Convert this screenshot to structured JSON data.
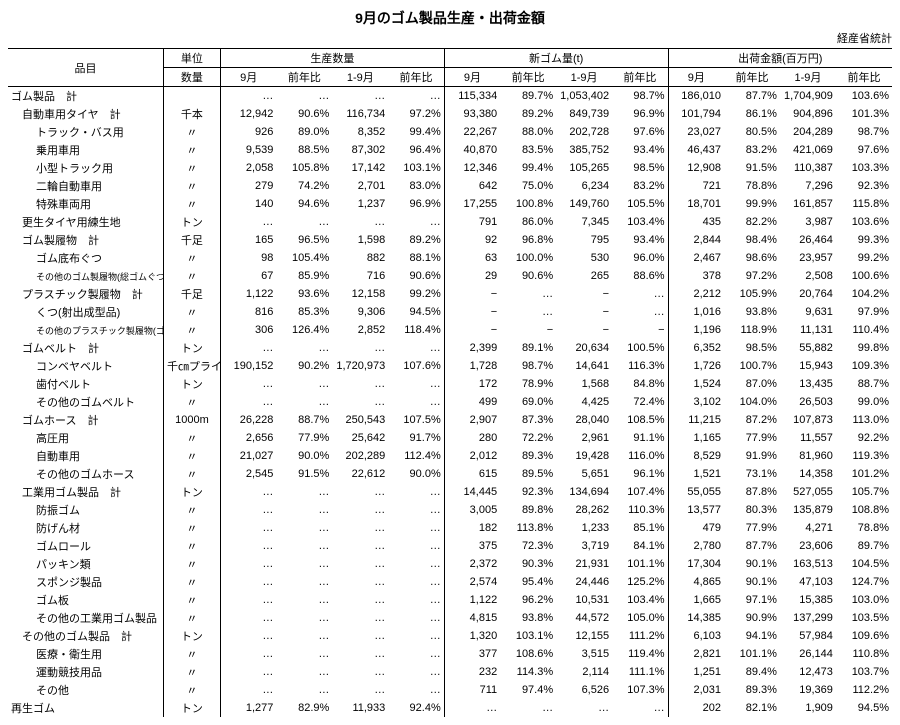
{
  "title": "9月のゴム製品生産・出荷金額",
  "subtitle": "経産省統計",
  "headers": {
    "item": "品目",
    "unit_top": "単位",
    "prod_qty": "生産数量",
    "new_rubber": "新ゴム量(t)",
    "ship_value": "出荷金額(百万円)",
    "qty": "数量",
    "sep": "9月",
    "yoy": "前年比",
    "jan_sep": "1-9月"
  },
  "rows": [
    {
      "label": "ゴム製品　計",
      "indent": 0,
      "unit": "",
      "q_sep": "…",
      "q_yoy": "…",
      "q_js": "…",
      "q_jsy": "…",
      "n_sep": "115,334",
      "n_yoy": "89.7%",
      "n_js": "1,053,402",
      "n_jsy": "98.7%",
      "s_sep": "186,010",
      "s_yoy": "87.7%",
      "s_js": "1,704,909",
      "s_jsy": "103.6%"
    },
    {
      "label": "自動車用タイヤ　計",
      "indent": 1,
      "unit": "千本",
      "q_sep": "12,942",
      "q_yoy": "90.6%",
      "q_js": "116,734",
      "q_jsy": "97.2%",
      "n_sep": "93,380",
      "n_yoy": "89.2%",
      "n_js": "849,739",
      "n_jsy": "96.9%",
      "s_sep": "101,794",
      "s_yoy": "86.1%",
      "s_js": "904,896",
      "s_jsy": "101.3%"
    },
    {
      "label": "トラック・バス用",
      "indent": 2,
      "unit": "〃",
      "q_sep": "926",
      "q_yoy": "89.0%",
      "q_js": "8,352",
      "q_jsy": "99.4%",
      "n_sep": "22,267",
      "n_yoy": "88.0%",
      "n_js": "202,728",
      "n_jsy": "97.6%",
      "s_sep": "23,027",
      "s_yoy": "80.5%",
      "s_js": "204,289",
      "s_jsy": "98.7%"
    },
    {
      "label": "乗用車用",
      "indent": 2,
      "unit": "〃",
      "q_sep": "9,539",
      "q_yoy": "88.5%",
      "q_js": "87,302",
      "q_jsy": "96.4%",
      "n_sep": "40,870",
      "n_yoy": "83.5%",
      "n_js": "385,752",
      "n_jsy": "93.4%",
      "s_sep": "46,437",
      "s_yoy": "83.2%",
      "s_js": "421,069",
      "s_jsy": "97.6%"
    },
    {
      "label": "小型トラック用",
      "indent": 2,
      "unit": "〃",
      "q_sep": "2,058",
      "q_yoy": "105.8%",
      "q_js": "17,142",
      "q_jsy": "103.1%",
      "n_sep": "12,346",
      "n_yoy": "99.4%",
      "n_js": "105,265",
      "n_jsy": "98.5%",
      "s_sep": "12,908",
      "s_yoy": "91.5%",
      "s_js": "110,387",
      "s_jsy": "103.3%"
    },
    {
      "label": "二輪自動車用",
      "indent": 2,
      "unit": "〃",
      "q_sep": "279",
      "q_yoy": "74.2%",
      "q_js": "2,701",
      "q_jsy": "83.0%",
      "n_sep": "642",
      "n_yoy": "75.0%",
      "n_js": "6,234",
      "n_jsy": "83.2%",
      "s_sep": "721",
      "s_yoy": "78.8%",
      "s_js": "7,296",
      "s_jsy": "92.3%"
    },
    {
      "label": "特殊車両用",
      "indent": 2,
      "unit": "〃",
      "q_sep": "140",
      "q_yoy": "94.6%",
      "q_js": "1,237",
      "q_jsy": "96.9%",
      "n_sep": "17,255",
      "n_yoy": "100.8%",
      "n_js": "149,760",
      "n_jsy": "105.5%",
      "s_sep": "18,701",
      "s_yoy": "99.9%",
      "s_js": "161,857",
      "s_jsy": "115.8%"
    },
    {
      "label": "更生タイヤ用練生地",
      "indent": 1,
      "unit": "トン",
      "q_sep": "…",
      "q_yoy": "…",
      "q_js": "…",
      "q_jsy": "…",
      "n_sep": "791",
      "n_yoy": "86.0%",
      "n_js": "7,345",
      "n_jsy": "103.4%",
      "s_sep": "435",
      "s_yoy": "82.2%",
      "s_js": "3,987",
      "s_jsy": "103.6%"
    },
    {
      "label": "ゴム製履物　計",
      "indent": 1,
      "unit": "千足",
      "q_sep": "165",
      "q_yoy": "96.5%",
      "q_js": "1,598",
      "q_jsy": "89.2%",
      "n_sep": "92",
      "n_yoy": "96.8%",
      "n_js": "795",
      "n_jsy": "93.4%",
      "s_sep": "2,844",
      "s_yoy": "98.4%",
      "s_js": "26,464",
      "s_jsy": "99.3%"
    },
    {
      "label": "ゴム底布ぐつ",
      "indent": 2,
      "unit": "〃",
      "q_sep": "98",
      "q_yoy": "105.4%",
      "q_js": "882",
      "q_jsy": "88.1%",
      "n_sep": "63",
      "n_yoy": "100.0%",
      "n_js": "530",
      "n_jsy": "96.0%",
      "s_sep": "2,467",
      "s_yoy": "98.6%",
      "s_js": "23,957",
      "s_jsy": "99.2%"
    },
    {
      "label": "その他のゴム製履物(総ゴムぐつを含む)",
      "indent": 3,
      "unit": "〃",
      "q_sep": "67",
      "q_yoy": "85.9%",
      "q_js": "716",
      "q_jsy": "90.6%",
      "n_sep": "29",
      "n_yoy": "90.6%",
      "n_js": "265",
      "n_jsy": "88.6%",
      "s_sep": "378",
      "s_yoy": "97.2%",
      "s_js": "2,508",
      "s_jsy": "100.6%"
    },
    {
      "label": "プラスチック製履物　計",
      "indent": 1,
      "unit": "千足",
      "q_sep": "1,122",
      "q_yoy": "93.6%",
      "q_js": "12,158",
      "q_jsy": "99.2%",
      "n_sep": "−",
      "n_yoy": "…",
      "n_js": "−",
      "n_jsy": "…",
      "s_sep": "2,212",
      "s_yoy": "105.9%",
      "s_js": "20,764",
      "s_jsy": "104.2%"
    },
    {
      "label": "くつ(射出成型品)",
      "indent": 2,
      "unit": "〃",
      "q_sep": "816",
      "q_yoy": "85.3%",
      "q_js": "9,306",
      "q_jsy": "94.5%",
      "n_sep": "−",
      "n_yoy": "…",
      "n_js": "−",
      "n_jsy": "…",
      "s_sep": "1,016",
      "s_yoy": "93.8%",
      "s_js": "9,631",
      "s_jsy": "97.9%"
    },
    {
      "label": "その他のプラスチック製履物(ゴム・プラ)",
      "indent": 3,
      "unit": "〃",
      "q_sep": "306",
      "q_yoy": "126.4%",
      "q_js": "2,852",
      "q_jsy": "118.4%",
      "n_sep": "−",
      "n_yoy": "−",
      "n_js": "−",
      "n_jsy": "−",
      "s_sep": "1,196",
      "s_yoy": "118.9%",
      "s_js": "11,131",
      "s_jsy": "110.4%"
    },
    {
      "label": "ゴムベルト　計",
      "indent": 1,
      "unit": "トン",
      "q_sep": "…",
      "q_yoy": "…",
      "q_js": "…",
      "q_jsy": "…",
      "n_sep": "2,399",
      "n_yoy": "89.1%",
      "n_js": "20,634",
      "n_jsy": "100.5%",
      "s_sep": "6,352",
      "s_yoy": "98.5%",
      "s_js": "55,882",
      "s_jsy": "99.8%"
    },
    {
      "label": "コンベヤベルト",
      "indent": 2,
      "unit": "千㎝プライ",
      "q_sep": "190,152",
      "q_yoy": "90.2%",
      "q_js": "1,720,973",
      "q_jsy": "107.6%",
      "n_sep": "1,728",
      "n_yoy": "98.7%",
      "n_js": "14,641",
      "n_jsy": "116.3%",
      "s_sep": "1,726",
      "s_yoy": "100.7%",
      "s_js": "15,943",
      "s_jsy": "109.3%"
    },
    {
      "label": "歯付ベルト",
      "indent": 2,
      "unit": "トン",
      "q_sep": "…",
      "q_yoy": "…",
      "q_js": "…",
      "q_jsy": "…",
      "n_sep": "172",
      "n_yoy": "78.9%",
      "n_js": "1,568",
      "n_jsy": "84.8%",
      "s_sep": "1,524",
      "s_yoy": "87.0%",
      "s_js": "13,435",
      "s_jsy": "88.7%"
    },
    {
      "label": "その他のゴムベルト",
      "indent": 2,
      "unit": "〃",
      "q_sep": "…",
      "q_yoy": "…",
      "q_js": "…",
      "q_jsy": "…",
      "n_sep": "499",
      "n_yoy": "69.0%",
      "n_js": "4,425",
      "n_jsy": "72.4%",
      "s_sep": "3,102",
      "s_yoy": "104.0%",
      "s_js": "26,503",
      "s_jsy": "99.0%"
    },
    {
      "label": "ゴムホース　計",
      "indent": 1,
      "unit": "1000m",
      "q_sep": "26,228",
      "q_yoy": "88.7%",
      "q_js": "250,543",
      "q_jsy": "107.5%",
      "n_sep": "2,907",
      "n_yoy": "87.3%",
      "n_js": "28,040",
      "n_jsy": "108.5%",
      "s_sep": "11,215",
      "s_yoy": "87.2%",
      "s_js": "107,873",
      "s_jsy": "113.0%"
    },
    {
      "label": "高圧用",
      "indent": 2,
      "unit": "〃",
      "q_sep": "2,656",
      "q_yoy": "77.9%",
      "q_js": "25,642",
      "q_jsy": "91.7%",
      "n_sep": "280",
      "n_yoy": "72.2%",
      "n_js": "2,961",
      "n_jsy": "91.1%",
      "s_sep": "1,165",
      "s_yoy": "77.9%",
      "s_js": "11,557",
      "s_jsy": "92.2%"
    },
    {
      "label": "自動車用",
      "indent": 2,
      "unit": "〃",
      "q_sep": "21,027",
      "q_yoy": "90.0%",
      "q_js": "202,289",
      "q_jsy": "112.4%",
      "n_sep": "2,012",
      "n_yoy": "89.3%",
      "n_js": "19,428",
      "n_jsy": "116.0%",
      "s_sep": "8,529",
      "s_yoy": "91.9%",
      "s_js": "81,960",
      "s_jsy": "119.3%"
    },
    {
      "label": "その他のゴムホース",
      "indent": 2,
      "unit": "〃",
      "q_sep": "2,545",
      "q_yoy": "91.5%",
      "q_js": "22,612",
      "q_jsy": "90.0%",
      "n_sep": "615",
      "n_yoy": "89.5%",
      "n_js": "5,651",
      "n_jsy": "96.1%",
      "s_sep": "1,521",
      "s_yoy": "73.1%",
      "s_js": "14,358",
      "s_jsy": "101.2%"
    },
    {
      "label": "工業用ゴム製品　計",
      "indent": 1,
      "unit": "トン",
      "q_sep": "…",
      "q_yoy": "…",
      "q_js": "…",
      "q_jsy": "…",
      "n_sep": "14,445",
      "n_yoy": "92.3%",
      "n_js": "134,694",
      "n_jsy": "107.4%",
      "s_sep": "55,055",
      "s_yoy": "87.8%",
      "s_js": "527,055",
      "s_jsy": "105.7%"
    },
    {
      "label": "防振ゴム",
      "indent": 2,
      "unit": "〃",
      "q_sep": "…",
      "q_yoy": "…",
      "q_js": "…",
      "q_jsy": "…",
      "n_sep": "3,005",
      "n_yoy": "89.8%",
      "n_js": "28,262",
      "n_jsy": "110.3%",
      "s_sep": "13,577",
      "s_yoy": "80.3%",
      "s_js": "135,879",
      "s_jsy": "108.8%"
    },
    {
      "label": "防げん材",
      "indent": 2,
      "unit": "〃",
      "q_sep": "…",
      "q_yoy": "…",
      "q_js": "…",
      "q_jsy": "…",
      "n_sep": "182",
      "n_yoy": "113.8%",
      "n_js": "1,233",
      "n_jsy": "85.1%",
      "s_sep": "479",
      "s_yoy": "77.9%",
      "s_js": "4,271",
      "s_jsy": "78.8%"
    },
    {
      "label": "ゴムロール",
      "indent": 2,
      "unit": "〃",
      "q_sep": "…",
      "q_yoy": "…",
      "q_js": "…",
      "q_jsy": "…",
      "n_sep": "375",
      "n_yoy": "72.3%",
      "n_js": "3,719",
      "n_jsy": "84.1%",
      "s_sep": "2,780",
      "s_yoy": "87.7%",
      "s_js": "23,606",
      "s_jsy": "89.7%"
    },
    {
      "label": "パッキン類",
      "indent": 2,
      "unit": "〃",
      "q_sep": "…",
      "q_yoy": "…",
      "q_js": "…",
      "q_jsy": "…",
      "n_sep": "2,372",
      "n_yoy": "90.3%",
      "n_js": "21,931",
      "n_jsy": "101.1%",
      "s_sep": "17,304",
      "s_yoy": "90.1%",
      "s_js": "163,513",
      "s_jsy": "104.5%"
    },
    {
      "label": "スポンジ製品",
      "indent": 2,
      "unit": "〃",
      "q_sep": "…",
      "q_yoy": "…",
      "q_js": "…",
      "q_jsy": "…",
      "n_sep": "2,574",
      "n_yoy": "95.4%",
      "n_js": "24,446",
      "n_jsy": "125.2%",
      "s_sep": "4,865",
      "s_yoy": "90.1%",
      "s_js": "47,103",
      "s_jsy": "124.7%"
    },
    {
      "label": "ゴム板",
      "indent": 2,
      "unit": "〃",
      "q_sep": "…",
      "q_yoy": "…",
      "q_js": "…",
      "q_jsy": "…",
      "n_sep": "1,122",
      "n_yoy": "96.2%",
      "n_js": "10,531",
      "n_jsy": "103.4%",
      "s_sep": "1,665",
      "s_yoy": "97.1%",
      "s_js": "15,385",
      "s_jsy": "103.0%"
    },
    {
      "label": "その他の工業用ゴム製品",
      "indent": 2,
      "unit": "〃",
      "q_sep": "…",
      "q_yoy": "…",
      "q_js": "…",
      "q_jsy": "…",
      "n_sep": "4,815",
      "n_yoy": "93.8%",
      "n_js": "44,572",
      "n_jsy": "105.0%",
      "s_sep": "14,385",
      "s_yoy": "90.9%",
      "s_js": "137,299",
      "s_jsy": "103.5%"
    },
    {
      "label": "その他のゴム製品　計",
      "indent": 1,
      "unit": "トン",
      "q_sep": "…",
      "q_yoy": "…",
      "q_js": "…",
      "q_jsy": "…",
      "n_sep": "1,320",
      "n_yoy": "103.1%",
      "n_js": "12,155",
      "n_jsy": "111.2%",
      "s_sep": "6,103",
      "s_yoy": "94.1%",
      "s_js": "57,984",
      "s_jsy": "109.6%"
    },
    {
      "label": "医療・衛生用",
      "indent": 2,
      "unit": "〃",
      "q_sep": "…",
      "q_yoy": "…",
      "q_js": "…",
      "q_jsy": "…",
      "n_sep": "377",
      "n_yoy": "108.6%",
      "n_js": "3,515",
      "n_jsy": "119.4%",
      "s_sep": "2,821",
      "s_yoy": "101.1%",
      "s_js": "26,144",
      "s_jsy": "110.8%"
    },
    {
      "label": "運動競技用品",
      "indent": 2,
      "unit": "〃",
      "q_sep": "…",
      "q_yoy": "…",
      "q_js": "…",
      "q_jsy": "…",
      "n_sep": "232",
      "n_yoy": "114.3%",
      "n_js": "2,114",
      "n_jsy": "111.1%",
      "s_sep": "1,251",
      "s_yoy": "89.4%",
      "s_js": "12,473",
      "s_jsy": "103.7%"
    },
    {
      "label": "その他",
      "indent": 2,
      "unit": "〃",
      "q_sep": "…",
      "q_yoy": "…",
      "q_js": "…",
      "q_jsy": "…",
      "n_sep": "711",
      "n_yoy": "97.4%",
      "n_js": "6,526",
      "n_jsy": "107.3%",
      "s_sep": "2,031",
      "s_yoy": "89.3%",
      "s_js": "19,369",
      "s_jsy": "112.2%"
    },
    {
      "label": "再生ゴム",
      "indent": 0,
      "unit": "トン",
      "q_sep": "1,277",
      "q_yoy": "82.9%",
      "q_js": "11,933",
      "q_jsy": "92.4%",
      "n_sep": "…",
      "n_yoy": "…",
      "n_js": "…",
      "n_jsy": "…",
      "s_sep": "202",
      "s_yoy": "82.1%",
      "s_js": "1,909",
      "s_jsy": "94.5%"
    }
  ]
}
